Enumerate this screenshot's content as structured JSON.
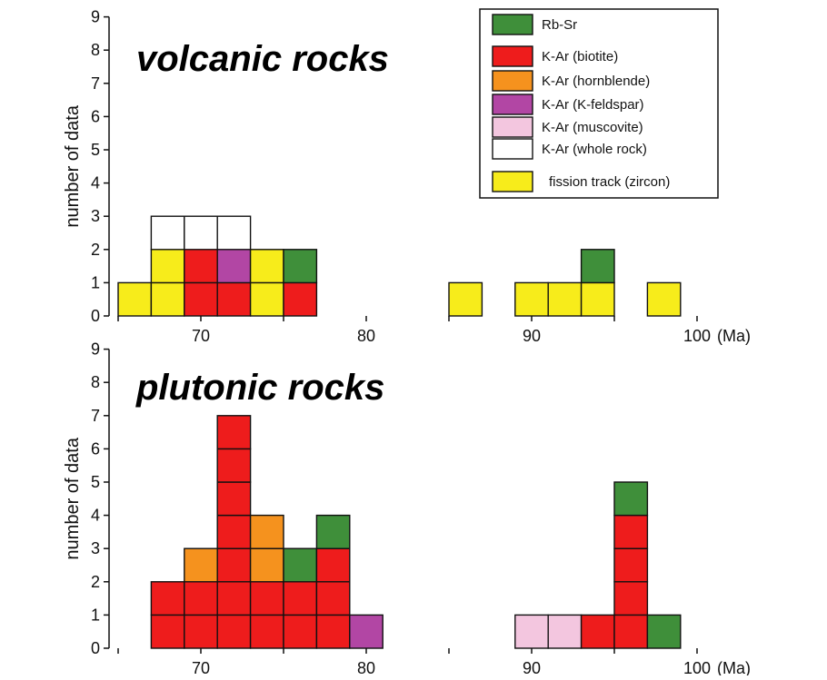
{
  "colors": {
    "rb_sr": "#3f8f3a",
    "k_ar_biotite": "#ee1c1c",
    "k_ar_hornblende": "#f5921e",
    "k_ar_kfeldspar": "#b246a4",
    "k_ar_muscovite": "#f3c6df",
    "k_ar_whole_rock": "#ffffff",
    "fission_track_zircon": "#f7ec1b",
    "outline": "#111111"
  },
  "legend": [
    {
      "key": "rb_sr",
      "label": "Rb-Sr"
    },
    {
      "key": "k_ar_biotite",
      "label": "K-Ar (biotite)"
    },
    {
      "key": "k_ar_hornblende",
      "label": "K-Ar (hornblende)"
    },
    {
      "key": "k_ar_kfeldspar",
      "label": "K-Ar (K-feldspar)"
    },
    {
      "key": "k_ar_muscovite",
      "label": "K-Ar (muscovite)"
    },
    {
      "key": "k_ar_whole_rock",
      "label": "K-Ar (whole rock)"
    },
    {
      "key": "fission_track_zircon",
      "label": "fission track (zircon)"
    }
  ],
  "chart_data": [
    {
      "type": "bar",
      "title": "volcanic rocks",
      "ylabel": "number of data",
      "xlabel": "(Ma)",
      "bin_width": 2,
      "xlim": [
        64,
        100
      ],
      "ylim": [
        0,
        9
      ],
      "x_ticks": [
        70,
        80,
        90,
        100
      ],
      "x_tick_labels": [
        "70",
        "80",
        "90",
        "100"
      ],
      "y_ticks": [
        0,
        1,
        2,
        3,
        4,
        5,
        6,
        7,
        8,
        9
      ],
      "y_tick_labels": [
        "0",
        "1",
        "2",
        "3",
        "4",
        "5",
        "6",
        "7",
        "8",
        "9"
      ],
      "bins": [
        {
          "x0": 65,
          "stack": [
            "fission_track_zircon"
          ]
        },
        {
          "x0": 67,
          "stack": [
            "fission_track_zircon",
            "fission_track_zircon",
            "k_ar_whole_rock"
          ]
        },
        {
          "x0": 69,
          "stack": [
            "k_ar_biotite",
            "k_ar_biotite",
            "k_ar_whole_rock"
          ]
        },
        {
          "x0": 71,
          "stack": [
            "k_ar_biotite",
            "k_ar_kfeldspar",
            "k_ar_whole_rock"
          ]
        },
        {
          "x0": 73,
          "stack": [
            "fission_track_zircon",
            "fission_track_zircon"
          ]
        },
        {
          "x0": 75,
          "stack": [
            "k_ar_biotite",
            "rb_sr"
          ]
        },
        {
          "x0": 85,
          "stack": [
            "fission_track_zircon"
          ]
        },
        {
          "x0": 89,
          "stack": [
            "fission_track_zircon"
          ]
        },
        {
          "x0": 91,
          "stack": [
            "fission_track_zircon"
          ]
        },
        {
          "x0": 93,
          "stack": [
            "fission_track_zircon",
            "rb_sr"
          ]
        },
        {
          "x0": 97,
          "stack": [
            "fission_track_zircon"
          ]
        }
      ]
    },
    {
      "type": "bar",
      "title": "plutonic rocks",
      "ylabel": "number of data",
      "xlabel": "(Ma)",
      "bin_width": 2,
      "xlim": [
        64,
        100
      ],
      "ylim": [
        0,
        9
      ],
      "x_ticks": [
        70,
        80,
        90,
        100
      ],
      "x_tick_labels": [
        "70",
        "80",
        "90",
        "100"
      ],
      "y_ticks": [
        0,
        1,
        2,
        3,
        4,
        5,
        6,
        7,
        8,
        9
      ],
      "y_tick_labels": [
        "0",
        "1",
        "2",
        "3",
        "4",
        "5",
        "6",
        "7",
        "8",
        "9"
      ],
      "bins": [
        {
          "x0": 67,
          "stack": [
            "k_ar_biotite",
            "k_ar_biotite"
          ]
        },
        {
          "x0": 69,
          "stack": [
            "k_ar_biotite",
            "k_ar_biotite",
            "k_ar_hornblende"
          ]
        },
        {
          "x0": 71,
          "stack": [
            "k_ar_biotite",
            "k_ar_biotite",
            "k_ar_biotite",
            "k_ar_biotite",
            "k_ar_biotite",
            "k_ar_biotite",
            "k_ar_biotite"
          ]
        },
        {
          "x0": 73,
          "stack": [
            "k_ar_biotite",
            "k_ar_biotite",
            "k_ar_hornblende",
            "k_ar_hornblende"
          ]
        },
        {
          "x0": 75,
          "stack": [
            "k_ar_biotite",
            "k_ar_biotite",
            "rb_sr"
          ]
        },
        {
          "x0": 77,
          "stack": [
            "k_ar_biotite",
            "k_ar_biotite",
            "k_ar_biotite",
            "rb_sr"
          ]
        },
        {
          "x0": 79,
          "stack": [
            "k_ar_kfeldspar"
          ]
        },
        {
          "x0": 89,
          "stack": [
            "k_ar_muscovite"
          ]
        },
        {
          "x0": 91,
          "stack": [
            "k_ar_muscovite"
          ]
        },
        {
          "x0": 93,
          "stack": [
            "k_ar_biotite"
          ]
        },
        {
          "x0": 95,
          "stack": [
            "k_ar_biotite",
            "k_ar_biotite",
            "k_ar_biotite",
            "k_ar_biotite",
            "rb_sr"
          ]
        },
        {
          "x0": 97,
          "stack": [
            "rb_sr"
          ]
        }
      ]
    }
  ]
}
